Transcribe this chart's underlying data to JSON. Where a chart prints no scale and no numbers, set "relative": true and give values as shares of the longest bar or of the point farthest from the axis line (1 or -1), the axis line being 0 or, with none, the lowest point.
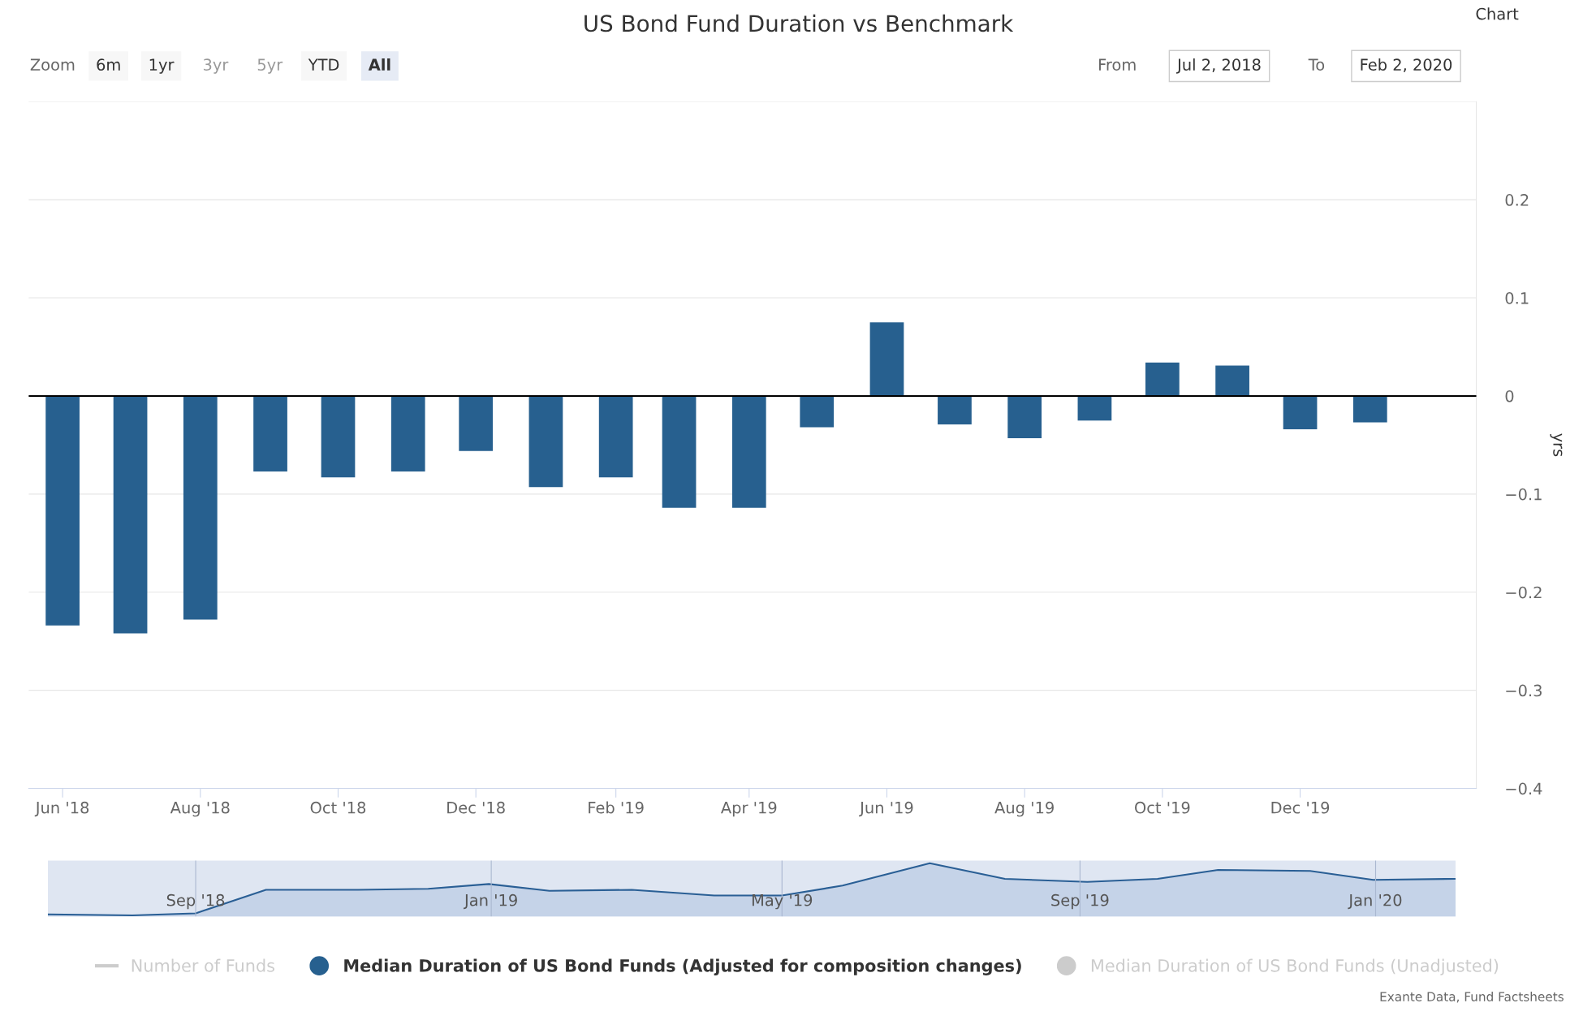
{
  "chart_data": [
    {
      "type": "bar",
      "title": "US Bond Fund Duration vs Benchmark",
      "ylabel": "yrs",
      "x": [
        "2018-06",
        "2018-07",
        "2018-08",
        "2018-09",
        "2018-10",
        "2018-11",
        "2018-12",
        "2019-01",
        "2019-02",
        "2019-03",
        "2019-04",
        "2019-05",
        "2019-06",
        "2019-07",
        "2019-08",
        "2019-09",
        "2019-10",
        "2019-11",
        "2019-12",
        "2020-01"
      ],
      "series": [
        {
          "name": "Number of Funds",
          "type": "line",
          "color": "#cccccc",
          "values": [
            null,
            null,
            null,
            null,
            null,
            null,
            null,
            null,
            null,
            null,
            null,
            null,
            null,
            null,
            null,
            null,
            null,
            null,
            null,
            null
          ]
        },
        {
          "name": "Median Duration of US Bond Funds (Adjusted for composition changes)",
          "color": "#27608f",
          "values": [
            -0.234,
            -0.242,
            -0.228,
            -0.077,
            -0.083,
            -0.077,
            -0.056,
            -0.093,
            -0.083,
            -0.114,
            -0.114,
            -0.032,
            0.075,
            -0.029,
            -0.043,
            -0.025,
            0.034,
            0.031,
            -0.034,
            -0.027
          ]
        },
        {
          "name": "Median Duration of US Bond Funds (Unadjusted)",
          "color": "#cccccc",
          "values": [
            null,
            null,
            null,
            null,
            null,
            null,
            null,
            null,
            null,
            null,
            null,
            null,
            null,
            null,
            null,
            null,
            null,
            null,
            null,
            null
          ]
        }
      ],
      "xlim": [
        "2018-05-17",
        "2020-02-17"
      ],
      "xticks": [
        {
          "value": "2018-06",
          "label": "Jun '18"
        },
        {
          "value": "2018-08",
          "label": "Aug '18"
        },
        {
          "value": "2018-10",
          "label": "Oct '18"
        },
        {
          "value": "2018-12",
          "label": "Dec '18"
        },
        {
          "value": "2019-02",
          "label": "Feb '19"
        },
        {
          "value": "2019-04",
          "label": "Apr '19"
        },
        {
          "value": "2019-06",
          "label": "Jun '19"
        },
        {
          "value": "2019-08",
          "label": "Aug '19"
        },
        {
          "value": "2019-10",
          "label": "Oct '19"
        },
        {
          "value": "2019-12",
          "label": "Dec '19"
        }
      ],
      "ylim": [
        -0.4,
        0.3
      ],
      "yticks": [
        {
          "value": -0.4,
          "label": "−0.4"
        },
        {
          "value": -0.3,
          "label": "−0.3"
        },
        {
          "value": -0.2,
          "label": "−0.2"
        },
        {
          "value": -0.1,
          "label": "−0.1"
        },
        0,
        0.1,
        0.2,
        {
          "value": 0.3,
          "label": null
        }
      ],
      "ref_lines": [
        {
          "axis": "y",
          "value": 0,
          "color": "#000000"
        }
      ],
      "grid": "y",
      "legend": "bottom",
      "annotations": [
        "Zoom",
        "6m",
        "1yr",
        "3yr",
        "5yr",
        "YTD",
        "All",
        "From",
        "Jul 2, 2018",
        "To",
        "Feb 2, 2020",
        "Chart",
        "Exante Data, Fund Factsheets"
      ]
    },
    {
      "type": "area",
      "relative": true,
      "tick_labels": "x",
      "x": [
        "2018-07-02",
        "2018-08-06",
        "2018-09-01",
        "2018-09-30",
        "2018-11-07",
        "2018-12-06",
        "2018-12-31",
        "2019-01-25",
        "2019-02-28",
        "2019-04-03",
        "2019-05-01",
        "2019-05-26",
        "2019-07-01",
        "2019-08-01",
        "2019-09-04",
        "2019-10-03",
        "2019-10-28",
        "2019-12-05",
        "2019-12-31",
        "2020-02-03"
      ],
      "series": [
        {
          "color": "#2a5f95",
          "values": [
            0.02,
            0,
            0.04,
            0.49,
            0.49,
            0.51,
            0.6,
            0.47,
            0.49,
            0.38,
            0.38,
            0.57,
            1,
            0.7,
            0.64,
            0.7,
            0.87,
            0.85,
            0.68,
            0.7
          ]
        }
      ],
      "xlim": [
        "2018-07-02",
        "2020-02-03"
      ],
      "xticks": [
        {
          "value": "2018-09-01",
          "label": "Sep '18"
        },
        {
          "value": "2019-01-01",
          "label": "Jan '19"
        },
        {
          "value": "2019-05-01",
          "label": "May '19"
        },
        {
          "value": "2019-09-01",
          "label": "Sep '19"
        },
        {
          "value": "2020-01-01",
          "label": "Jan '20"
        }
      ],
      "grid": "x"
    }
  ]
}
